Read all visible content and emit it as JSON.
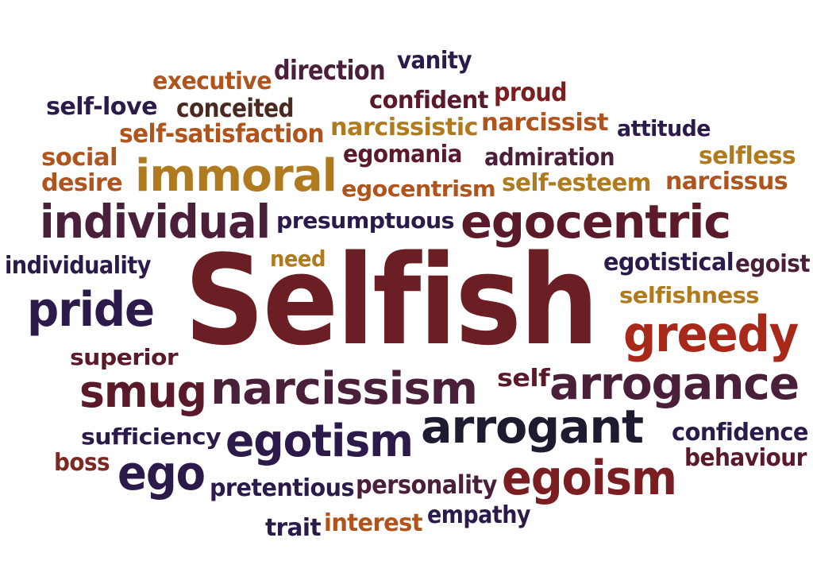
{
  "word_cloud": {
    "words": [
      {
        "text": "vanity",
        "color": "#2b1a4a"
      },
      {
        "text": "direction",
        "color": "#4a1f3a"
      },
      {
        "text": "executive",
        "color": "#b0541e"
      },
      {
        "text": "proud",
        "color": "#7a1e22"
      },
      {
        "text": "self-love",
        "color": "#2b1a4a"
      },
      {
        "text": "conceited",
        "color": "#4a2a20"
      },
      {
        "text": "confident",
        "color": "#5b1a2a"
      },
      {
        "text": "self-satisfaction",
        "color": "#b0541e"
      },
      {
        "text": "narcissistic",
        "color": "#b07a1e"
      },
      {
        "text": "narcissist",
        "color": "#b0541e"
      },
      {
        "text": "attitude",
        "color": "#2b1a4a"
      },
      {
        "text": "social",
        "color": "#b0541e"
      },
      {
        "text": "egomania",
        "color": "#5b1a2a"
      },
      {
        "text": "admiration",
        "color": "#4a1f3a"
      },
      {
        "text": "selfless",
        "color": "#b07a1e"
      },
      {
        "text": "desire",
        "color": "#b0541e"
      },
      {
        "text": "immoral",
        "color": "#b07a1e"
      },
      {
        "text": "egocentrism",
        "color": "#b0541e"
      },
      {
        "text": "self-esteem",
        "color": "#b07a1e"
      },
      {
        "text": "narcissus",
        "color": "#b0541e"
      },
      {
        "text": "individual",
        "color": "#4a1f3a"
      },
      {
        "text": "presumptuous",
        "color": "#2b1a4a"
      },
      {
        "text": "egocentric",
        "color": "#5b1a2a"
      },
      {
        "text": "individuality",
        "color": "#2b1a4a"
      },
      {
        "text": "need",
        "color": "#b07a1e"
      },
      {
        "text": "egotistical",
        "color": "#2b1a4a"
      },
      {
        "text": "egoist",
        "color": "#4a1f3a"
      },
      {
        "text": "Selfish",
        "color": "#6b1f24"
      },
      {
        "text": "pride",
        "color": "#2b1a4a"
      },
      {
        "text": "selfishness",
        "color": "#b07a1e"
      },
      {
        "text": "greedy",
        "color": "#a8281a"
      },
      {
        "text": "superior",
        "color": "#5b1a2a"
      },
      {
        "text": "smug",
        "color": "#5b1a2a"
      },
      {
        "text": "narcissism",
        "color": "#4a1f3a"
      },
      {
        "text": "self",
        "color": "#5b1a2a"
      },
      {
        "text": "arrogance",
        "color": "#4a1f3a"
      },
      {
        "text": "arrogant",
        "color": "#1e1a30"
      },
      {
        "text": "sufficiency",
        "color": "#2b1a4a"
      },
      {
        "text": "egotism",
        "color": "#2b1a4a"
      },
      {
        "text": "confidence",
        "color": "#2b1a4a"
      },
      {
        "text": "behaviour",
        "color": "#5b1a2a"
      },
      {
        "text": "boss",
        "color": "#7a2a22"
      },
      {
        "text": "ego",
        "color": "#2b1a4a"
      },
      {
        "text": "pretentious",
        "color": "#2b1a4a"
      },
      {
        "text": "personality",
        "color": "#4a1f3a"
      },
      {
        "text": "egoism",
        "color": "#7a1e22"
      },
      {
        "text": "trait",
        "color": "#2b1a4a"
      },
      {
        "text": "interest",
        "color": "#b0541e"
      },
      {
        "text": "empathy",
        "color": "#2b1a4a"
      }
    ]
  }
}
